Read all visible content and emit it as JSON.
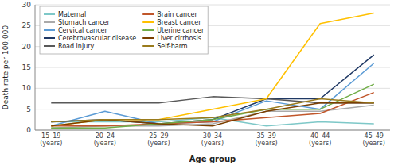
{
  "chart_data": {
    "type": "line",
    "categories": [
      "15–19\n(years)",
      "20–24\n(years)",
      "25–29\n(years)",
      "30–34\n(years)",
      "35–39\n(years)",
      "40–44\n(years)",
      "45–49\n(years)"
    ],
    "series": [
      {
        "name": "Maternal",
        "color": "#7EC8C8",
        "values": [
          2.0,
          2.0,
          2.0,
          3.0,
          1.0,
          2.0,
          1.5
        ]
      },
      {
        "name": "Stomach cancer",
        "color": "#AAAAAA",
        "values": [
          0.5,
          1.0,
          1.0,
          1.5,
          4.5,
          4.5,
          6.0
        ]
      },
      {
        "name": "Cervical cancer",
        "color": "#5B9BD5",
        "values": [
          1.0,
          4.5,
          1.5,
          2.0,
          7.0,
          5.0,
          16.0
        ]
      },
      {
        "name": "Cerebrovascular disease",
        "color": "#1F3864",
        "values": [
          2.0,
          2.5,
          1.5,
          2.5,
          7.5,
          7.5,
          18.0
        ]
      },
      {
        "name": "Road injury",
        "color": "#595959",
        "values": [
          6.5,
          6.5,
          6.5,
          8.0,
          7.5,
          6.5,
          6.5
        ]
      },
      {
        "name": "Brain cancer",
        "color": "#C0562A",
        "values": [
          1.0,
          1.0,
          1.5,
          2.0,
          3.0,
          4.0,
          9.0
        ]
      },
      {
        "name": "Breast cancer",
        "color": "#FFC000",
        "values": [
          1.0,
          2.5,
          2.5,
          5.0,
          7.5,
          25.5,
          28.0
        ]
      },
      {
        "name": "Uterine cancer",
        "color": "#70AD47",
        "values": [
          0.5,
          0.5,
          1.5,
          2.5,
          5.0,
          5.0,
          11.0
        ]
      },
      {
        "name": "Liver cirrhosis",
        "color": "#7B3F00",
        "values": [
          1.0,
          2.5,
          1.5,
          1.0,
          4.5,
          6.5,
          6.5
        ]
      },
      {
        "name": "Self-harm",
        "color": "#9A7B1C",
        "values": [
          2.0,
          2.5,
          2.5,
          3.0,
          5.0,
          7.5,
          6.5
        ]
      }
    ],
    "xlabel": "Age group",
    "ylabel": "Death rate per 100,000",
    "ylim": [
      0,
      30
    ],
    "yticks": [
      0,
      5,
      10,
      15,
      20,
      25,
      30
    ],
    "grid": true,
    "legend": "upper left"
  }
}
